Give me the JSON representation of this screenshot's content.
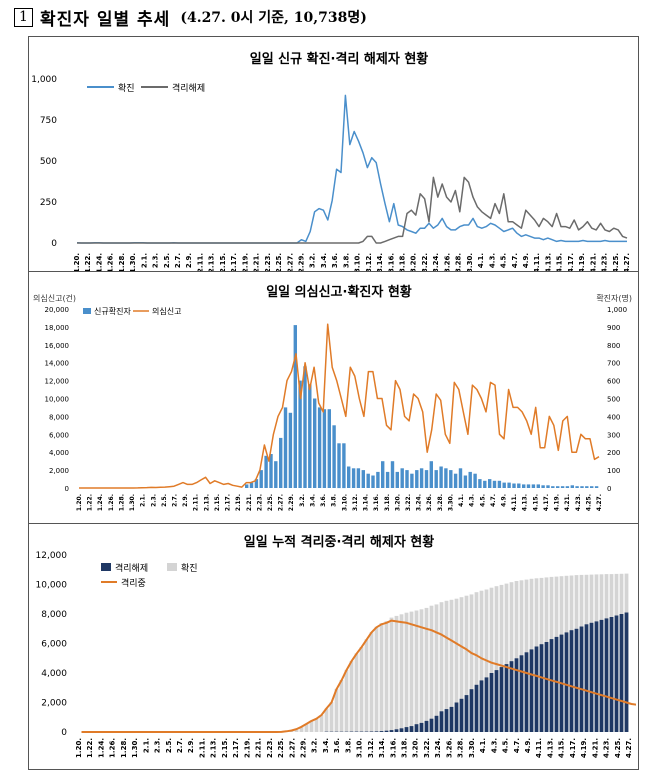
{
  "header": {
    "number": "1",
    "title": "확진자 일별 추세",
    "subtitle": "(4.27. 0시 기준, 10,738명)"
  },
  "chart_data": [
    {
      "type": "line",
      "title": "일일 신규 확진·격리 해제자 현황",
      "ylim": [
        0,
        1000
      ],
      "yticks": [
        "1,000",
        "750",
        "500",
        "250",
        "0"
      ],
      "xticks": [
        "1.20.",
        "1.22.",
        "1.24.",
        "1.26.",
        "1.28.",
        "1.30.",
        "2.1.",
        "2.3.",
        "2.5.",
        "2.7.",
        "2.9.",
        "2.11.",
        "2.13.",
        "2.15.",
        "2.17.",
        "2.19.",
        "2.21.",
        "2.23.",
        "2.25.",
        "2.27.",
        "2.29.",
        "3.2.",
        "3.4.",
        "3.6.",
        "3.8.",
        "3.10.",
        "3.12.",
        "3.14.",
        "3.16.",
        "3.18.",
        "3.20.",
        "3.22.",
        "3.24.",
        "3.26.",
        "3.28.",
        "3.30.",
        "4.1.",
        "4.3.",
        "4.5.",
        "4.7.",
        "4.9.",
        "4.11.",
        "4.13.",
        "4.15.",
        "4.17.",
        "4.19.",
        "4.21.",
        "4.23.",
        "4.25.",
        "4.27."
      ],
      "legend": "top-left",
      "series": [
        {
          "name": "확진",
          "color": "#4a8fcb",
          "values": [
            1,
            0,
            0,
            0,
            1,
            1,
            0,
            0,
            0,
            0,
            0,
            0,
            0,
            1,
            2,
            1,
            0,
            0,
            0,
            0,
            0,
            0,
            1,
            0,
            0,
            0,
            0,
            0,
            0,
            0,
            0,
            0,
            0,
            0,
            0,
            0,
            0,
            0,
            0,
            0,
            0,
            0,
            0,
            0,
            0,
            0,
            0,
            0,
            0,
            0,
            0,
            20,
            10,
            70,
            190,
            210,
            200,
            140,
            260,
            450,
            430,
            900,
            600,
            680,
            620,
            550,
            460,
            520,
            490,
            360,
            240,
            130,
            240,
            110,
            100,
            80,
            70,
            60,
            90,
            90,
            120,
            90,
            110,
            150,
            100,
            80,
            80,
            100,
            110,
            110,
            150,
            100,
            90,
            100,
            120,
            110,
            90,
            70,
            80,
            90,
            60,
            40,
            50,
            40,
            30,
            30,
            20,
            30,
            20,
            10,
            15,
            10,
            10,
            10,
            10,
            15,
            10,
            10,
            10,
            10,
            15,
            10,
            10,
            10,
            10,
            10
          ]
        },
        {
          "name": "격리해제",
          "color": "#6b6b6b",
          "values": [
            0,
            0,
            0,
            0,
            0,
            0,
            0,
            0,
            0,
            0,
            0,
            0,
            0,
            0,
            0,
            0,
            0,
            0,
            0,
            0,
            0,
            0,
            0,
            0,
            0,
            0,
            0,
            0,
            0,
            0,
            0,
            0,
            0,
            0,
            0,
            0,
            0,
            0,
            0,
            0,
            0,
            0,
            0,
            0,
            0,
            0,
            0,
            0,
            0,
            0,
            0,
            0,
            0,
            0,
            0,
            0,
            0,
            0,
            0,
            0,
            0,
            0,
            0,
            0,
            0,
            10,
            40,
            40,
            0,
            0,
            10,
            20,
            30,
            40,
            40,
            180,
            200,
            170,
            300,
            270,
            130,
            400,
            280,
            360,
            280,
            250,
            320,
            190,
            400,
            370,
            280,
            220,
            190,
            170,
            150,
            240,
            180,
            300,
            130,
            130,
            110,
            90,
            200,
            170,
            140,
            100,
            150,
            130,
            100,
            180,
            100,
            100,
            90,
            140,
            80,
            100,
            130,
            90,
            80,
            120,
            80,
            70,
            90,
            80,
            40,
            30
          ]
        }
      ]
    },
    {
      "type": "bar",
      "title": "일일 의심신고·확진자 현황",
      "ylabel_left": "의심신고(건)",
      "ylabel_right": "확진자(명)",
      "ylim_left": [
        0,
        20000
      ],
      "ylim_right": [
        0,
        1000
      ],
      "yticks_left": [
        "20,000",
        "18,000",
        "16,000",
        "14,000",
        "12,000",
        "10,000",
        "8,000",
        "6,000",
        "4,000",
        "2,000",
        "0"
      ],
      "yticks_right": [
        "1,000",
        "900",
        "800",
        "700",
        "600",
        "500",
        "400",
        "300",
        "200",
        "100",
        "0"
      ],
      "xticks": [
        "1.20.",
        "1.22.",
        "1.24.",
        "1.26.",
        "1.28.",
        "1.30.",
        "2.1.",
        "2.3.",
        "2.5.",
        "2.7.",
        "2.9.",
        "2.11.",
        "2.13.",
        "2.15.",
        "2.17.",
        "2.19.",
        "2.21.",
        "2.23.",
        "2.25.",
        "2.27.",
        "2.29.",
        "3.2.",
        "3.4.",
        "3.6.",
        "3.8.",
        "3.10.",
        "3.12.",
        "3.14.",
        "3.16.",
        "3.18.",
        "3.20.",
        "3.22.",
        "3.24.",
        "3.26.",
        "3.28.",
        "3.30.",
        "4.1.",
        "4.3.",
        "4.5.",
        "4.7.",
        "4.9.",
        "4.11.",
        "4.13.",
        "4.15.",
        "4.17.",
        "4.19.",
        "4.21.",
        "4.23.",
        "4.25.",
        "4.27."
      ],
      "legend": "top-left",
      "series": [
        {
          "name": "신규확진자",
          "axis": "right",
          "color": "#4a8fcb",
          "values": [
            1,
            0,
            0,
            0,
            1,
            0,
            0,
            1,
            1,
            0,
            1,
            1,
            1,
            1,
            2,
            0,
            0,
            0,
            0,
            0,
            0,
            0,
            0,
            0,
            0,
            0,
            0,
            0,
            0,
            0,
            0,
            0,
            0,
            0,
            20,
            30,
            50,
            100,
            180,
            190,
            150,
            280,
            450,
            420,
            910,
            600,
            680,
            580,
            500,
            450,
            440,
            440,
            350,
            250,
            250,
            120,
            110,
            110,
            100,
            80,
            70,
            90,
            150,
            90,
            150,
            90,
            110,
            100,
            80,
            100,
            110,
            100,
            150,
            100,
            120,
            110,
            100,
            80,
            110,
            70,
            90,
            80,
            50,
            40,
            50,
            40,
            40,
            30,
            30,
            25,
            25,
            20,
            20,
            20,
            20,
            15,
            15,
            10,
            10,
            10,
            10,
            15,
            10,
            10,
            10,
            10,
            10
          ]
        },
        {
          "name": "의심신고",
          "axis": "left",
          "color": "#e07b28",
          "values": [
            0,
            0,
            0,
            0,
            0,
            0,
            0,
            0,
            0,
            0,
            0,
            0,
            0,
            10,
            30,
            50,
            70,
            60,
            80,
            100,
            150,
            200,
            400,
            600,
            400,
            400,
            600,
            900,
            1200,
            500,
            800,
            600,
            400,
            500,
            300,
            200,
            100,
            600,
            600,
            800,
            2000,
            4800,
            3000,
            6000,
            8000,
            9000,
            12000,
            13000,
            15000,
            10000,
            14000,
            11000,
            13500,
            9500,
            8500,
            18300,
            13500,
            12000,
            10000,
            8000,
            13500,
            12500,
            10000,
            8000,
            13000,
            13000,
            10000,
            10000,
            7000,
            6500,
            12000,
            11000,
            8000,
            7500,
            10500,
            10000,
            8500,
            4000,
            6500,
            10500,
            9800,
            6000,
            5000,
            11800,
            11000,
            8500,
            6000,
            11500,
            11000,
            10000,
            8500,
            11800,
            11500,
            6000,
            5500,
            11000,
            9000,
            9000,
            8500,
            7500,
            6000,
            9000,
            4500,
            4500,
            8000,
            7000,
            4200,
            7500,
            8000,
            4000,
            4000,
            6000,
            5500,
            5500,
            3200,
            3500
          ]
        }
      ]
    },
    {
      "type": "area",
      "title": "일일 누적 격리중·격리 해제자 현황",
      "ylim": [
        0,
        12000
      ],
      "yticks": [
        "12,000",
        "10,000",
        "8,000",
        "6,000",
        "4,000",
        "2,000",
        "0"
      ],
      "xticks": [
        "1.20.",
        "1.22.",
        "1.24.",
        "1.26.",
        "1.28.",
        "1.30.",
        "2.1.",
        "2.3.",
        "2.5.",
        "2.7.",
        "2.9.",
        "2.11.",
        "2.13.",
        "2.15.",
        "2.17.",
        "2.19.",
        "2.21.",
        "2.23.",
        "2.25.",
        "2.27.",
        "2.29.",
        "3.2.",
        "3.4.",
        "3.6.",
        "3.8.",
        "3.10.",
        "3.12.",
        "3.14.",
        "3.16.",
        "3.18.",
        "3.20.",
        "3.22.",
        "3.24.",
        "3.26.",
        "3.28.",
        "3.30.",
        "4.1.",
        "4.3.",
        "4.5.",
        "4.7.",
        "4.9.",
        "4.11.",
        "4.13.",
        "4.15.",
        "4.17.",
        "4.19.",
        "4.21.",
        "4.23.",
        "4.25.",
        "4.27."
      ],
      "legend": "top-left",
      "series": [
        {
          "name": "격리해제",
          "color": "#1f3864",
          "values": [
            0,
            0,
            0,
            0,
            0,
            0,
            0,
            0,
            0,
            0,
            0,
            0,
            0,
            0,
            0,
            0,
            0,
            0,
            0,
            0,
            0,
            0,
            0,
            0,
            0,
            0,
            0,
            0,
            0,
            0,
            0,
            0,
            0,
            0,
            0,
            0,
            0,
            0,
            0,
            0,
            0,
            0,
            0,
            0,
            0,
            0,
            0,
            0,
            10,
            20,
            20,
            20,
            20,
            22,
            24,
            26,
            28,
            30,
            34,
            40,
            60,
            90,
            130,
            180,
            250,
            330,
            400,
            530,
            620,
            750,
            900,
            1100,
            1400,
            1550,
            1700,
            2000,
            2250,
            2500,
            2900,
            3200,
            3500,
            3700,
            4000,
            4200,
            4400,
            4600,
            4800,
            5000,
            5200,
            5400,
            5600,
            5800,
            5950,
            6100,
            6300,
            6450,
            6600,
            6750,
            6900,
            7000,
            7150,
            7300,
            7400,
            7500,
            7600,
            7700,
            7800,
            7900,
            8000,
            8100,
            8200,
            8300,
            8400,
            8500,
            8550,
            8600,
            8700,
            8750
          ]
        },
        {
          "name": "확진",
          "color": "#d4d4d4",
          "values": [
            1,
            1,
            1,
            1,
            2,
            3,
            3,
            4,
            6,
            7,
            9,
            10,
            11,
            11,
            12,
            15,
            16,
            16,
            19,
            23,
            24,
            24,
            25,
            27,
            27,
            28,
            28,
            28,
            28,
            28,
            28,
            28,
            28,
            28,
            28,
            28,
            29,
            30,
            31,
            31,
            31,
            46,
            82,
            156,
            346,
            556,
            763,
            893,
            1146,
            1595,
            2022,
            2931,
            3526,
            4212,
            4812,
            5328,
            5766,
            6284,
            6767,
            7134,
            7382,
            7513,
            7755,
            7869,
            7979,
            8086,
            8162,
            8236,
            8320,
            8413,
            8565,
            8652,
            8799,
            8897,
            8961,
            9037,
            9137,
            9241,
            9332,
            9478,
            9583,
            9661,
            9786,
            9887,
            9976,
            10062,
            10156,
            10237,
            10284,
            10331,
            10384,
            10423,
            10450,
            10480,
            10512,
            10537,
            10564,
            10591,
            10613,
            10635,
            10653,
            10661,
            10674,
            10683,
            10694,
            10702,
            10708,
            10718,
            10728,
            10738
          ]
        },
        {
          "name": "격리중",
          "color": "#e07b28",
          "values": [
            0,
            0,
            0,
            0,
            0,
            0,
            0,
            0,
            0,
            0,
            0,
            0,
            0,
            0,
            0,
            0,
            0,
            0,
            0,
            0,
            0,
            0,
            0,
            0,
            0,
            0,
            0,
            0,
            0,
            0,
            0,
            0,
            0,
            0,
            0,
            0,
            0,
            0,
            0,
            0,
            10,
            50,
            100,
            200,
            350,
            550,
            750,
            900,
            1150,
            1600,
            2000,
            2900,
            3500,
            4200,
            4800,
            5300,
            5750,
            6250,
            6750,
            7100,
            7300,
            7400,
            7550,
            7500,
            7450,
            7400,
            7300,
            7200,
            7100,
            7000,
            6900,
            6750,
            6600,
            6400,
            6200,
            6000,
            5800,
            5600,
            5350,
            5200,
            5000,
            4850,
            4700,
            4600,
            4500,
            4400,
            4300,
            4200,
            4100,
            4000,
            3900,
            3800,
            3700,
            3600,
            3500,
            3400,
            3300,
            3200,
            3100,
            3000,
            2900,
            2800,
            2700,
            2600,
            2500,
            2400,
            2300,
            2200,
            2100,
            2000,
            1900,
            1850,
            1800,
            1750,
            1700,
            1650
          ]
        }
      ]
    }
  ]
}
